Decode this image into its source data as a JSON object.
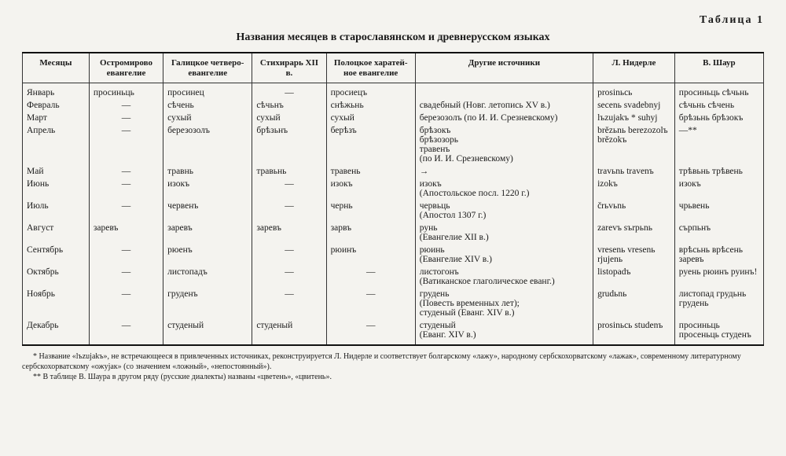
{
  "label": "Таблица 1",
  "title": "Названия месяцев в старославянском и древнерусском языках",
  "columns": [
    "Месяцы",
    "Остромирово евангелие",
    "Галицкое четверо-евангелие",
    "Стихирарь XII в.",
    "Полоцкое харатей-ное евангелие",
    "Другие источники",
    "Л. Нидерле",
    "В. Шаур"
  ],
  "rows": [
    [
      "Январь",
      "просиньць",
      "просинец",
      "—",
      "просиецъ",
      "",
      "prosinьсь",
      "просиньць сѣчьнь"
    ],
    [
      "Февраль",
      "—",
      "сѣчень",
      "сѣчьнъ",
      "снѣжьнь",
      "свадебный (Новг. летопись XV в.)",
      "secenь svadebnyj",
      "сѣчьнь сѣчень"
    ],
    [
      "Март",
      "—",
      "сухый",
      "сухый",
      "сухый",
      "березозолъ (по И. И. Срезневскому)",
      "lъzujakъ * suhyj",
      "брѣзьнь брѣзокъ"
    ],
    [
      "Апрель",
      "—",
      "березозолъ",
      "брѣзьнъ",
      "берѣзъ",
      "брѣзокъ\nбрѣзозорь\nтравенъ\n(по И. И. Срезневскому)",
      "brězьnь berezozolъ brězokъ",
      "—**"
    ],
    [
      "Май",
      "—",
      "травнь",
      "травьнь",
      "травень",
      "→",
      "travьnь travenъ",
      "трѣвьнь трѣвень"
    ],
    [
      "Июнь",
      "—",
      "изокъ",
      "—",
      "изокъ",
      "изокъ\n(Апостольское посл. 1220 г.)",
      "izokъ",
      "изокъ"
    ],
    [
      "Июль",
      "—",
      "червенъ",
      "—",
      "чернь",
      "червьць\n(Апостол 1307 г.)",
      "črьvьnь",
      "чрьвень"
    ],
    [
      "Август",
      "заревъ",
      "заревъ",
      "заревъ",
      "зарвъ",
      "рунь\n(Евангелие XII в.)",
      "zarevъ sъrpьnь",
      "сърпьнъ"
    ],
    [
      "Сентябрь",
      "—",
      "рюенъ",
      "—",
      "рюинъ",
      "рюинь\n(Евангелие XIV в.)",
      "vresenь vresenь rjujenь",
      "врѣсьнь врѣсень заревъ"
    ],
    [
      "Октябрь",
      "—",
      "листопадъ",
      "—",
      "—",
      "листогонъ\n(Ватиканское глаголическое еванг.)",
      "listopadъ",
      "руень рюинъ руинъ!"
    ],
    [
      "Ноябрь",
      "—",
      "груденъ",
      "—",
      "—",
      "грудень\n(Повесть временных лет);\nстуденый (Еванг. XIV в.)",
      "grudьnь",
      "листопад грудьнь грудень"
    ],
    [
      "Декабрь",
      "—",
      "студеный",
      "студеный",
      "—",
      "студеный\n(Еванг. XIV в.)",
      "prosinьсь studenъ",
      "просиньць просеньць студенъ"
    ]
  ],
  "footnotes": [
    "* Название «lъzujakъ», не встречающееся в привлеченных источниках, реконструируется Л. Нидерле и соответствует болгарскому «лажу», народному сербскохорватскому «лажак», современному литературному сербскохорватскому «ожујак» (со значением «ложный», «непостоянный»).",
    "** В таблице В. Шаура в другом ряду (русские диалекты) названы «цветень», «цвитень»."
  ]
}
